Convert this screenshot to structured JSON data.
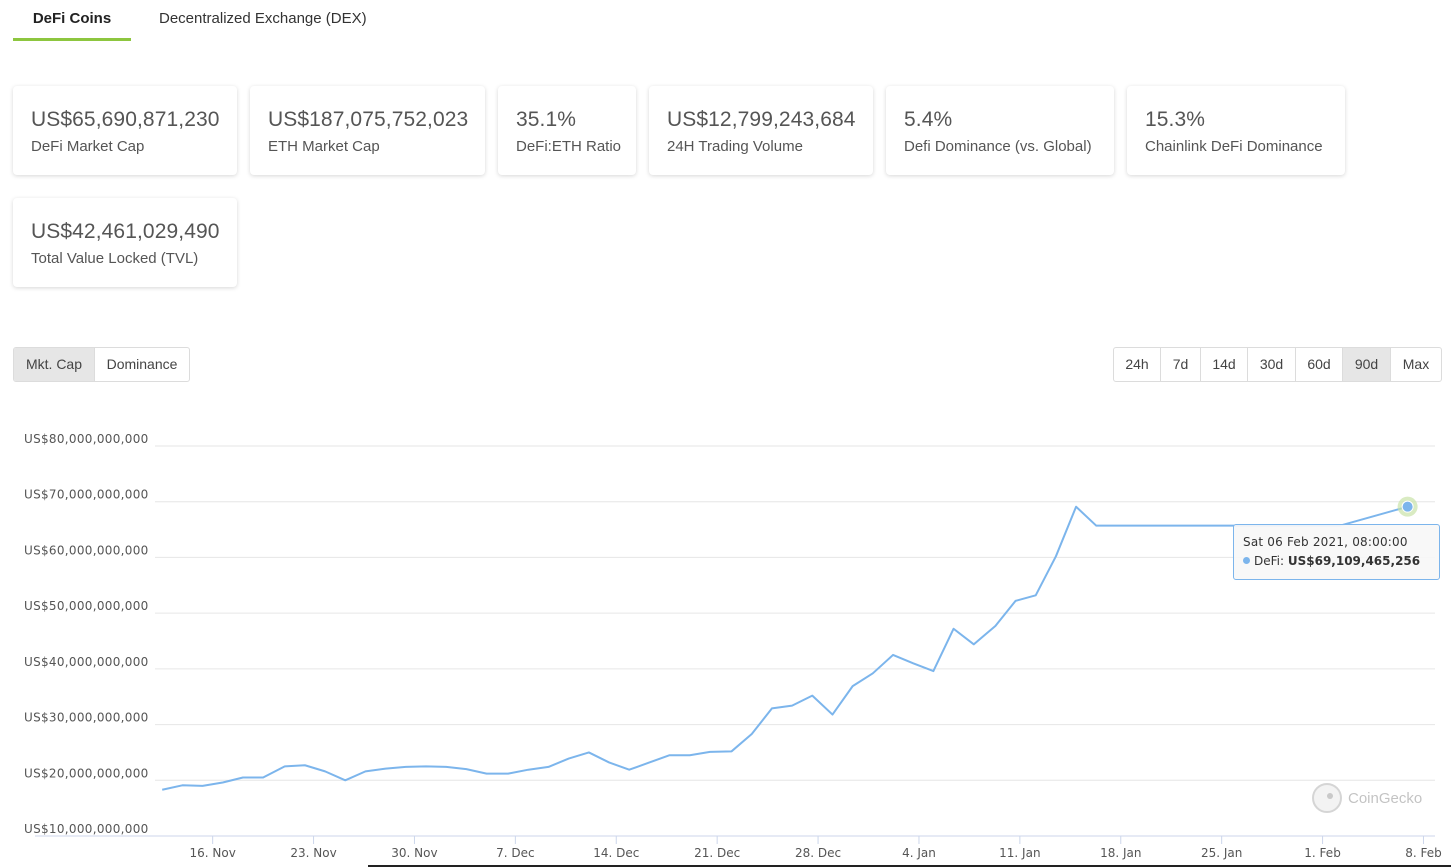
{
  "tabs": [
    {
      "label": "DeFi Coins",
      "active": true
    },
    {
      "label": "Decentralized Exchange (DEX)",
      "active": false
    }
  ],
  "stats": [
    {
      "value": "US$65,690,871,230",
      "label": "DeFi Market Cap"
    },
    {
      "value": "US$187,075,752,023",
      "label": "ETH Market Cap"
    },
    {
      "value": "35.1%",
      "label": "DeFi:ETH Ratio"
    },
    {
      "value": "US$12,799,243,684",
      "label": "24H Trading Volume"
    },
    {
      "value": "5.4%",
      "label": "Defi Dominance (vs. Global)"
    },
    {
      "value": "15.3%",
      "label": "Chainlink DeFi Dominance"
    },
    {
      "value": "US$42,461,029,490",
      "label": "Total Value Locked (TVL)"
    }
  ],
  "chart_type_buttons": [
    {
      "label": "Mkt. Cap",
      "selected": true
    },
    {
      "label": "Dominance",
      "selected": false
    }
  ],
  "range_buttons": [
    {
      "label": "24h",
      "selected": false
    },
    {
      "label": "7d",
      "selected": false
    },
    {
      "label": "14d",
      "selected": false
    },
    {
      "label": "30d",
      "selected": false
    },
    {
      "label": "60d",
      "selected": false
    },
    {
      "label": "90d",
      "selected": true
    },
    {
      "label": "Max",
      "selected": false
    }
  ],
  "tooltip": {
    "date": "Sat 06 Feb 2021, 08:00:00",
    "series": "DeFi:",
    "value": "US$69,109,465,256"
  },
  "credit": "CoinGecko",
  "chart_data": {
    "type": "line",
    "title": "",
    "xlabel": "",
    "ylabel": "",
    "grid": true,
    "line_color": "#7cb5ec",
    "ylim": [
      10000000000,
      80000000000
    ],
    "y_ticks": [
      {
        "value": 80000000000,
        "label": "US$80,000,000,000"
      },
      {
        "value": 70000000000,
        "label": "US$70,000,000,000"
      },
      {
        "value": 60000000000,
        "label": "US$60,000,000,000"
      },
      {
        "value": 50000000000,
        "label": "US$50,000,000,000"
      },
      {
        "value": 40000000000,
        "label": "US$40,000,000,000"
      },
      {
        "value": 30000000000,
        "label": "US$30,000,000,000"
      },
      {
        "value": 20000000000,
        "label": "US$20,000,000,000"
      },
      {
        "value": 10000000000,
        "label": "US$10,000,000,000"
      }
    ],
    "x_ticks": [
      "16. Nov",
      "23. Nov",
      "30. Nov",
      "7. Dec",
      "14. Dec",
      "21. Dec",
      "28. Dec",
      "4. Jan",
      "11. Jan",
      "18. Jan",
      "25. Jan",
      "1. Feb",
      "8. Feb"
    ],
    "xlim_days": [
      -4.0,
      84.8
    ],
    "series": [
      {
        "name": "DeFi",
        "x_days": [
          -3.5,
          -2.1,
          -0.7,
          0.7,
          2.1,
          3.5,
          5.0,
          6.4,
          7.8,
          9.2,
          10.6,
          12.0,
          13.4,
          14.8,
          16.2,
          17.6,
          19.0,
          20.5,
          21.9,
          23.3,
          24.7,
          26.1,
          27.5,
          28.9,
          30.3,
          31.7,
          33.1,
          34.5,
          36.0,
          37.4,
          38.8,
          40.2,
          41.6,
          43.0,
          44.4,
          45.8,
          47.2,
          48.6,
          50.0,
          51.4,
          52.8,
          54.3,
          55.7,
          57.1,
          58.5,
          59.9,
          61.3,
          62.7,
          64.1,
          65.5,
          66.9,
          68.3,
          69.8,
          71.2,
          72.6,
          74.0,
          75.4,
          76.8,
          78.2
        ],
        "values": [
          18.3,
          19.1,
          19.0,
          19.6,
          20.5,
          20.5,
          22.5,
          22.7,
          21.6,
          20.0,
          21.6,
          22.1,
          22.4,
          22.5,
          22.4,
          22.0,
          21.2,
          21.2,
          21.9,
          22.4,
          23.9,
          25.0,
          23.2,
          21.9,
          23.2,
          24.5,
          24.5,
          25.1,
          25.2,
          28.3,
          32.9,
          33.4,
          35.2,
          31.8,
          36.9,
          39.2,
          42.5,
          41.0,
          39.6,
          47.2,
          44.4,
          47.7,
          52.2,
          53.2,
          60.2,
          69.1,
          65.7,
          65.7,
          65.7,
          65.7,
          65.7,
          65.7,
          65.7,
          65.7,
          65.7,
          65.7,
          65.7,
          65.7,
          65.7
        ],
        "values_unit": "billion USD"
      }
    ],
    "highlight_point": {
      "x_day": 82.9,
      "value": 69109465256
    }
  }
}
